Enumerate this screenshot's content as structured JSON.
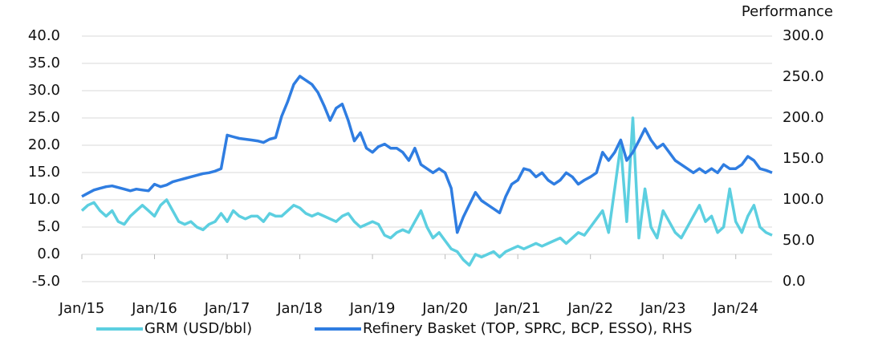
{
  "chart_data": {
    "type": "line",
    "y2_label": "Performance",
    "categories": [
      "Jan/15",
      null,
      null,
      null,
      null,
      null,
      null,
      null,
      null,
      null,
      null,
      null,
      "Jan/16",
      null,
      null,
      null,
      null,
      null,
      null,
      null,
      null,
      null,
      null,
      null,
      "Jan/17",
      null,
      null,
      null,
      null,
      null,
      null,
      null,
      null,
      null,
      null,
      null,
      "Jan/18",
      null,
      null,
      null,
      null,
      null,
      null,
      null,
      null,
      null,
      null,
      null,
      "Jan/19",
      null,
      null,
      null,
      null,
      null,
      null,
      null,
      null,
      null,
      null,
      null,
      "Jan/20",
      null,
      null,
      null,
      null,
      null,
      null,
      null,
      null,
      null,
      null,
      null,
      "Jan/21",
      null,
      null,
      null,
      null,
      null,
      null,
      null,
      null,
      null,
      null,
      null,
      "Jan/22",
      null,
      null,
      null,
      null,
      null,
      null,
      null,
      null,
      null,
      null,
      null,
      "Jan/23",
      null,
      null,
      null,
      null,
      null,
      null,
      null,
      null,
      null,
      null,
      null,
      "Jan/24",
      null,
      null,
      null,
      null,
      null,
      null
    ],
    "series": [
      {
        "name": "GRM (USD/bbl)",
        "color": "#5ccfe0",
        "values": [
          8,
          9,
          9.5,
          8,
          7,
          8,
          6,
          5.5,
          7,
          8,
          9,
          8,
          7,
          9,
          10,
          8,
          6,
          5.5,
          6,
          5,
          4.5,
          5.5,
          6,
          7.5,
          6,
          8,
          7,
          6.5,
          7,
          7,
          6,
          7.5,
          7,
          7,
          8,
          9,
          8.5,
          7.5,
          7,
          7.5,
          7,
          6.5,
          6,
          7,
          7.5,
          6,
          5,
          5.5,
          6,
          5.5,
          3.5,
          3,
          4,
          4.5,
          4,
          6,
          8,
          5,
          3,
          4,
          2.5,
          1,
          0.5,
          -1,
          -2,
          0,
          -0.5,
          0,
          0.5,
          -0.5,
          0.5,
          1,
          1.5,
          1,
          1.5,
          2,
          1.5,
          2,
          2.5,
          3,
          2,
          3,
          4,
          3.5,
          5,
          6.5,
          8,
          4,
          12,
          20,
          6,
          25,
          3,
          12,
          5,
          3,
          8,
          6,
          4,
          3,
          5,
          7,
          9,
          6,
          7,
          4,
          5,
          12,
          6,
          4,
          7,
          9,
          5,
          4,
          3.5
        ]
      },
      {
        "name": "Refinery Basket (TOP, SPRC, BCP, ESSO), RHS",
        "color": "#2f7de1",
        "axis": "y2",
        "values": [
          104,
          108,
          112,
          114,
          116,
          117,
          115,
          113,
          111,
          113,
          112,
          111,
          119,
          116,
          118,
          122,
          124,
          126,
          128,
          130,
          132,
          133,
          135,
          138,
          179,
          177,
          175,
          174,
          173,
          172,
          170,
          174,
          176,
          202,
          220,
          241,
          251,
          246,
          241,
          231,
          215,
          197,
          212,
          217,
          197,
          172,
          182,
          163,
          158,
          165,
          168,
          163,
          163,
          158,
          148,
          163,
          143,
          138,
          133,
          138,
          133,
          114,
          60,
          79,
          94,
          109,
          99,
          94,
          89,
          84,
          104,
          119,
          124,
          138,
          136,
          128,
          133,
          124,
          119,
          124,
          133,
          128,
          119,
          124,
          128,
          133,
          158,
          148,
          158,
          173,
          148,
          158,
          172,
          187,
          173,
          163,
          168,
          158,
          148,
          143,
          138,
          133,
          138,
          133,
          138,
          133,
          143,
          138,
          138,
          143,
          153,
          148,
          138,
          136,
          133
        ]
      }
    ],
    "ylim": [
      -5,
      40
    ],
    "yticks": [
      {
        "value": -5,
        "label": "-5.0"
      },
      {
        "value": 0,
        "label": "0.0"
      },
      {
        "value": 5,
        "label": "5.0"
      },
      {
        "value": 10,
        "label": "10.0"
      },
      {
        "value": 15,
        "label": "15.0"
      },
      {
        "value": 20,
        "label": "20.0"
      },
      {
        "value": 25,
        "label": "25.0"
      },
      {
        "value": 30,
        "label": "30.0"
      },
      {
        "value": 35,
        "label": "35.0"
      },
      {
        "value": 40,
        "label": "40.0"
      }
    ],
    "y2lim": [
      0,
      300
    ],
    "y2ticks": [
      {
        "value": 0,
        "label": "0.0"
      },
      {
        "value": 50,
        "label": "50.0"
      },
      {
        "value": 100,
        "label": "100.0"
      },
      {
        "value": 150,
        "label": "150.0"
      },
      {
        "value": 200,
        "label": "200.0"
      },
      {
        "value": 250,
        "label": "250.0"
      },
      {
        "value": 300,
        "label": "300.0"
      }
    ],
    "grid": true,
    "legend": "bottom"
  }
}
